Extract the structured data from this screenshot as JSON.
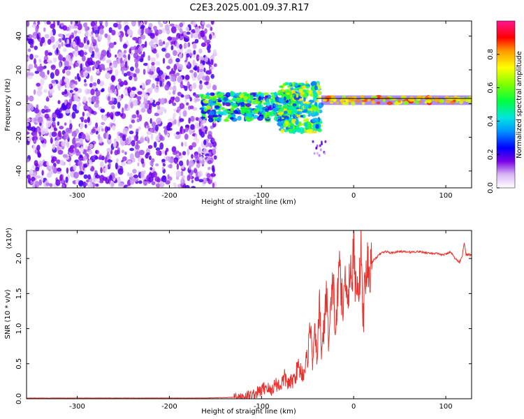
{
  "title": "C2E3.2025.001.09.37.R17",
  "chart_data": [
    {
      "type": "heatmap",
      "xlabel": "Height of straight line (km)",
      "ylabel": "Frequency (Hz)",
      "xlim": [
        -355,
        128
      ],
      "ylim": [
        -50,
        49
      ],
      "xticks": [
        -300,
        -200,
        -100,
        0,
        100
      ],
      "xtick_labels": [
        "-300",
        "-200",
        "-100",
        "0",
        "100"
      ],
      "yticks": [
        -40,
        -20,
        0,
        20,
        40
      ],
      "ytick_labels": [
        "-40",
        "-20",
        "0",
        "20",
        "40"
      ],
      "colorbar": {
        "label": "Normalized spectral amplitude",
        "range": [
          0,
          1
        ],
        "ticks": [
          0.0,
          0.2,
          0.4,
          0.6,
          0.8
        ],
        "tick_labels": [
          "0.0",
          "0.2",
          "0.4",
          "0.6",
          "0.8"
        ]
      },
      "regions": [
        {
          "x": [
            -355,
            -150
          ],
          "y": [
            -50,
            49
          ],
          "level": 0.25,
          "texture": "noise"
        },
        {
          "x": [
            -165,
            -60
          ],
          "y": [
            -10,
            6
          ],
          "level": 0.45,
          "texture": "blobs"
        },
        {
          "x": [
            -80,
            -35
          ],
          "y": [
            -17,
            12
          ],
          "level": 0.55,
          "texture": "blobs"
        },
        {
          "x": [
            -45,
            -30
          ],
          "y": [
            -33,
            -22
          ],
          "level": 0.15,
          "texture": "tail"
        },
        {
          "x": [
            -35,
            128
          ],
          "y": [
            0,
            4
          ],
          "level": 0.75,
          "texture": "band"
        }
      ],
      "reference_line": {
        "x": [
          -40,
          128
        ],
        "y": 3
      }
    },
    {
      "type": "line",
      "xlabel": "Height of straight line (km)",
      "ylabel": "SNR (10 * v/v)",
      "y_multiplier": "(x10⁴)",
      "xlim": [
        -355,
        128
      ],
      "ylim": [
        0,
        2.4
      ],
      "xticks": [
        -300,
        -200,
        -100,
        0,
        100
      ],
      "xtick_labels": [
        "-300",
        "-200",
        "-100",
        "0",
        "100"
      ],
      "yticks": [
        0.0,
        0.5,
        1.0,
        1.5,
        2.0
      ],
      "ytick_labels": [
        "0.0",
        "0.5",
        "1.0",
        "1.5",
        "2.0"
      ],
      "line_color": "#e8322e",
      "series": [
        {
          "x": [
            -355,
            -300,
            -250,
            -200,
            -160,
            -130,
            -110,
            -100,
            -95,
            -90,
            -85,
            -80,
            -75,
            -70,
            -65,
            -60,
            -55,
            -50,
            -47,
            -45,
            -42,
            -40,
            -37,
            -35,
            -32,
            -30,
            -27,
            -25,
            -22,
            -20,
            -17,
            -15,
            -12,
            -10,
            -8,
            -6,
            -4,
            -2,
            0,
            2,
            4,
            6,
            8,
            10,
            12,
            15,
            18,
            20,
            25,
            30,
            35,
            40,
            50,
            60,
            70,
            80,
            90,
            95,
            100,
            105,
            110,
            115,
            118,
            120,
            122,
            125,
            128
          ],
          "y": [
            0.01,
            0.01,
            0.01,
            0.01,
            0.01,
            0.02,
            0.05,
            0.12,
            0.18,
            0.1,
            0.22,
            0.18,
            0.3,
            0.2,
            0.28,
            0.45,
            0.35,
            0.6,
            1.1,
            0.5,
            0.9,
            0.6,
            1.3,
            0.7,
            1.0,
            1.6,
            0.8,
            1.2,
            1.7,
            0.9,
            1.5,
            2.0,
            1.2,
            1.6,
            1.8,
            1.4,
            1.9,
            1.7,
            2.1,
            1.6,
            1.8,
            1.5,
            2.35,
            1.0,
            1.6,
            1.9,
            1.85,
            1.95,
            2.02,
            2.08,
            2.1,
            2.08,
            2.1,
            2.09,
            2.1,
            2.08,
            2.07,
            2.05,
            2.06,
            2.1,
            2.0,
            1.95,
            2.05,
            2.22,
            2.05,
            2.06,
            2.04
          ]
        }
      ]
    }
  ]
}
